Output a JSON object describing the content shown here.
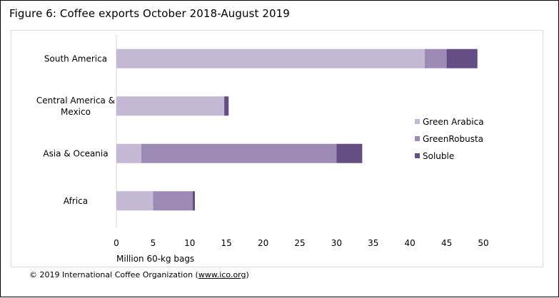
{
  "page_title": "Figure 6: Coffee exports October 2018-August 2019",
  "footer": {
    "prefix": "© 2019 International Coffee Organization (",
    "link": "www.ico.org",
    "suffix": ")"
  },
  "chart_data": {
    "type": "bar",
    "orientation": "horizontal",
    "stacked": true,
    "categories": [
      "South America",
      "Central America & Mexico",
      "Asia & Oceania",
      "Africa"
    ],
    "category_labels": [
      [
        "South America"
      ],
      [
        "Central America &",
        "Mexico"
      ],
      [
        "Asia & Oceania"
      ],
      [
        "Africa"
      ]
    ],
    "series": [
      {
        "name": "Green Arabica",
        "legend_words": [
          "Green",
          "Arabica"
        ],
        "color": "#c4b9d5",
        "values": [
          42.0,
          14.7,
          3.4,
          5.0
        ]
      },
      {
        "name": "GreenRobusta",
        "legend_words": [
          "Green",
          "Robusta"
        ],
        "color": "#9d8bb5",
        "values": [
          3.0,
          0.0,
          26.6,
          5.4
        ]
      },
      {
        "name": "Soluble",
        "legend_words": [
          "Soluble"
        ],
        "color": "#654e83",
        "values": [
          4.2,
          0.6,
          3.5,
          0.3
        ]
      }
    ],
    "xlim": [
      0,
      50
    ],
    "xticks": [
      "0",
      "5",
      "10",
      "15",
      "20",
      "25",
      "30",
      "35",
      "40",
      "45",
      "50"
    ],
    "xlabel": "Million 60-kg bags",
    "ylabel": "",
    "grid": false,
    "legend_position": "right"
  }
}
